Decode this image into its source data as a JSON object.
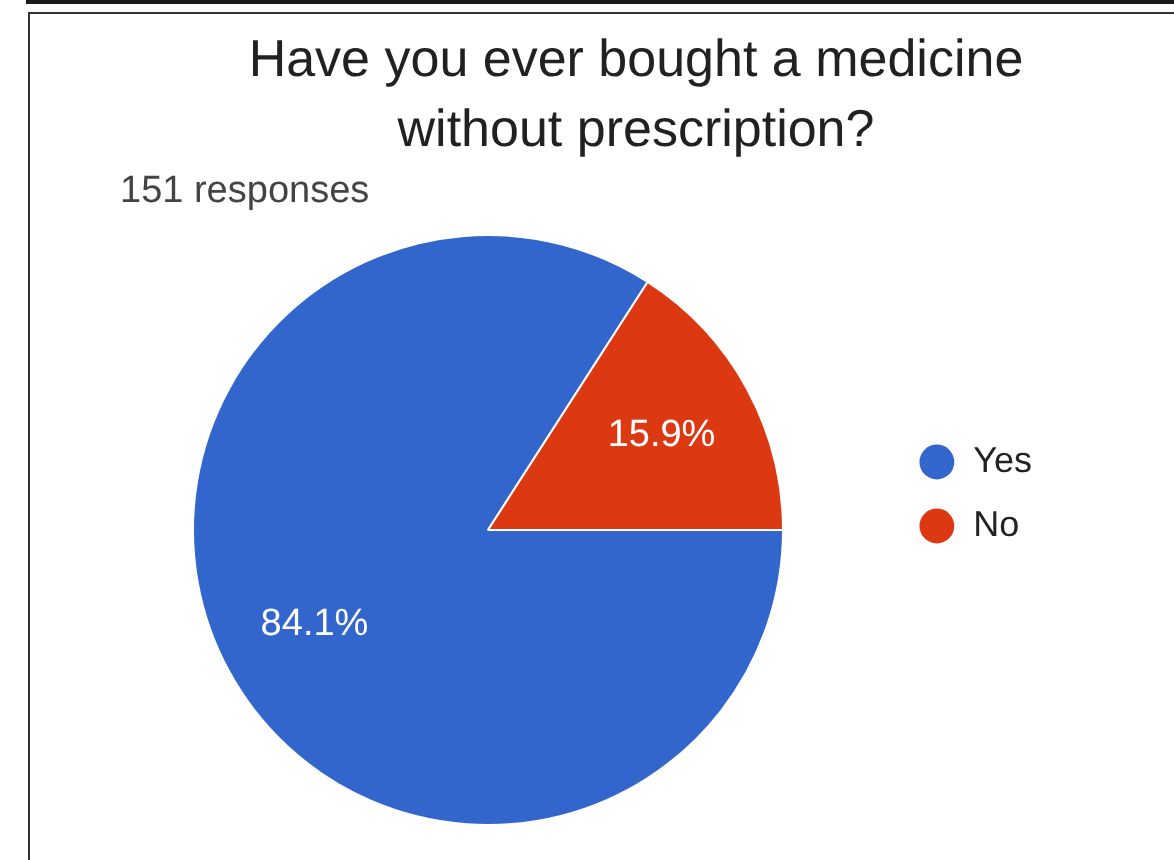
{
  "chart_data": {
    "type": "pie",
    "title": "Have you ever bought a medicine without prescription?",
    "subtitle": "151 responses",
    "categories": [
      "Yes",
      "No"
    ],
    "values": [
      84.1,
      15.9
    ],
    "colors": [
      "#3366cc",
      "#dc3912"
    ],
    "value_labels": [
      "84.1%",
      "15.9%"
    ],
    "legend": "right"
  }
}
